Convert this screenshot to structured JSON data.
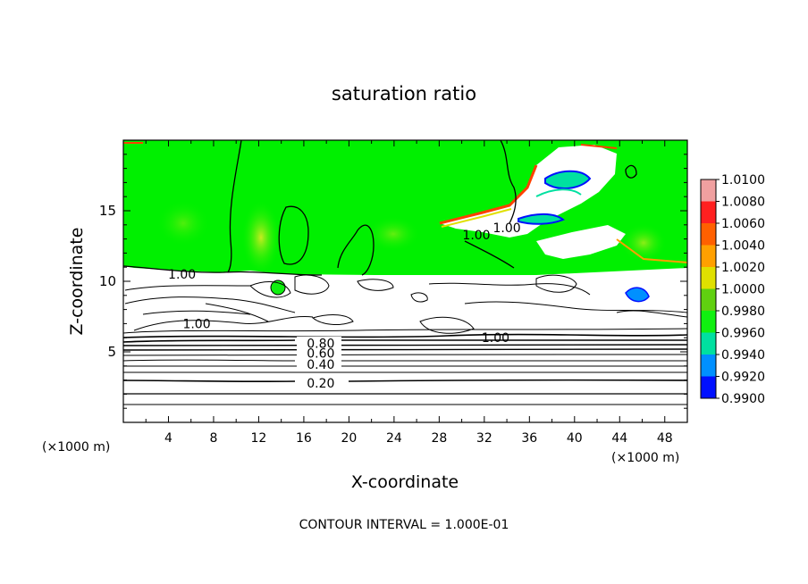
{
  "chart_data": {
    "type": "heatmap",
    "title": "saturation ratio",
    "xlabel": "X-coordinate",
    "ylabel": "Z-coordinate",
    "x_unit_left": "(×1000 m)",
    "x_unit_right": "(×1000 m)",
    "footer": "CONTOUR INTERVAL = 1.000E-01",
    "xlim": [
      0,
      50
    ],
    "ylim": [
      0,
      20
    ],
    "x_ticks": [
      4,
      8,
      12,
      16,
      20,
      24,
      28,
      32,
      36,
      40,
      44,
      48
    ],
    "y_ticks": [
      5,
      10,
      15
    ],
    "contour_labels": [
      {
        "text": "1.00",
        "x": 5.2,
        "y": 10.5
      },
      {
        "text": "1.00",
        "x": 6.5,
        "y": 7.0
      },
      {
        "text": "1.00",
        "x": 31.3,
        "y": 13.3
      },
      {
        "text": "1.00",
        "x": 34.0,
        "y": 13.8
      },
      {
        "text": "1.00",
        "x": 33.0,
        "y": 6.0
      },
      {
        "text": "0.80",
        "x": 17.5,
        "y": 5.6
      },
      {
        "text": "0.60",
        "x": 17.5,
        "y": 4.9
      },
      {
        "text": "0.40",
        "x": 17.5,
        "y": 4.1
      },
      {
        "text": "0.20",
        "x": 17.5,
        "y": 2.8
      }
    ],
    "colorbar": {
      "min": 0.99,
      "max": 1.01,
      "levels": [
        {
          "label": "1.0100",
          "color": "#f0a0a0"
        },
        {
          "label": "1.0080",
          "color": "#ff2020"
        },
        {
          "label": "1.0060",
          "color": "#ff6000"
        },
        {
          "label": "1.0040",
          "color": "#ffa000"
        },
        {
          "label": "1.0020",
          "color": "#e0e000"
        },
        {
          "label": "1.0000",
          "color": "#60d010"
        },
        {
          "label": "0.9980",
          "color": "#10f010"
        },
        {
          "label": "0.9960",
          "color": "#00e0a0"
        },
        {
          "label": "0.9940",
          "color": "#0090ff"
        },
        {
          "label": "0.9920",
          "color": "#0010ff"
        },
        {
          "label": "0.9900",
          "color": "#7000c0"
        }
      ]
    }
  }
}
